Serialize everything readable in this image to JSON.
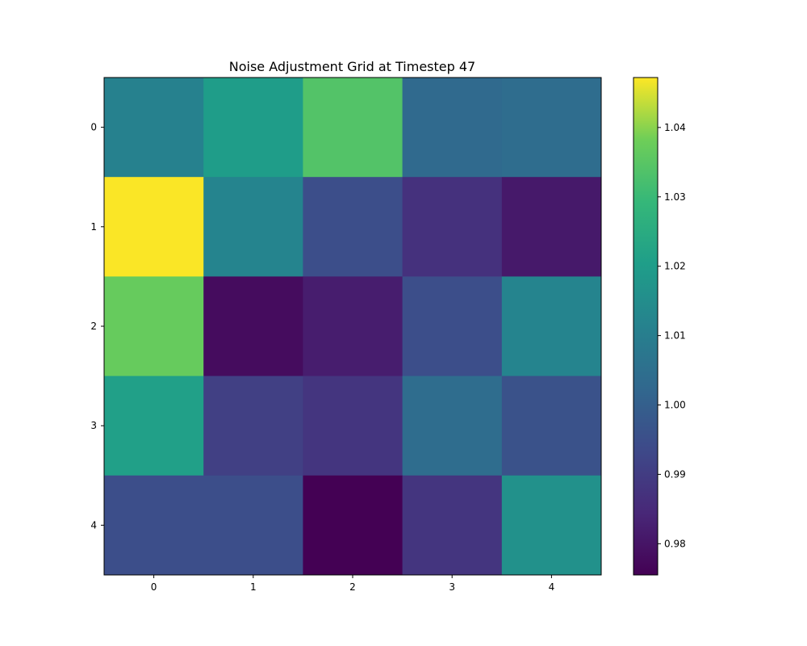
{
  "chart_data": {
    "type": "heatmap",
    "title": "Noise Adjustment Grid at Timestep 47",
    "xlabel": "",
    "ylabel": "",
    "x_ticks": [
      "0",
      "1",
      "2",
      "3",
      "4"
    ],
    "y_ticks": [
      "0",
      "1",
      "2",
      "3",
      "4"
    ],
    "colormap": "viridis",
    "vmin": 0.9755,
    "vmax": 1.0472,
    "colorbar_ticks": [
      0.98,
      0.99,
      1.0,
      1.01,
      1.02,
      1.03,
      1.04
    ],
    "colorbar_tick_labels": [
      "0.98",
      "0.99",
      "1.00",
      "1.01",
      "1.02",
      "1.03",
      "1.04"
    ],
    "values": [
      [
        1.011,
        1.02,
        1.034,
        1.003,
        1.004
      ],
      [
        1.047,
        1.012,
        0.995,
        0.987,
        0.981
      ],
      [
        1.037,
        0.978,
        0.982,
        0.995,
        1.012
      ],
      [
        1.021,
        0.991,
        0.988,
        1.004,
        0.996
      ],
      [
        0.995,
        0.995,
        0.9755,
        0.988,
        1.016
      ]
    ],
    "grid": false,
    "colorbar_position": "right"
  }
}
